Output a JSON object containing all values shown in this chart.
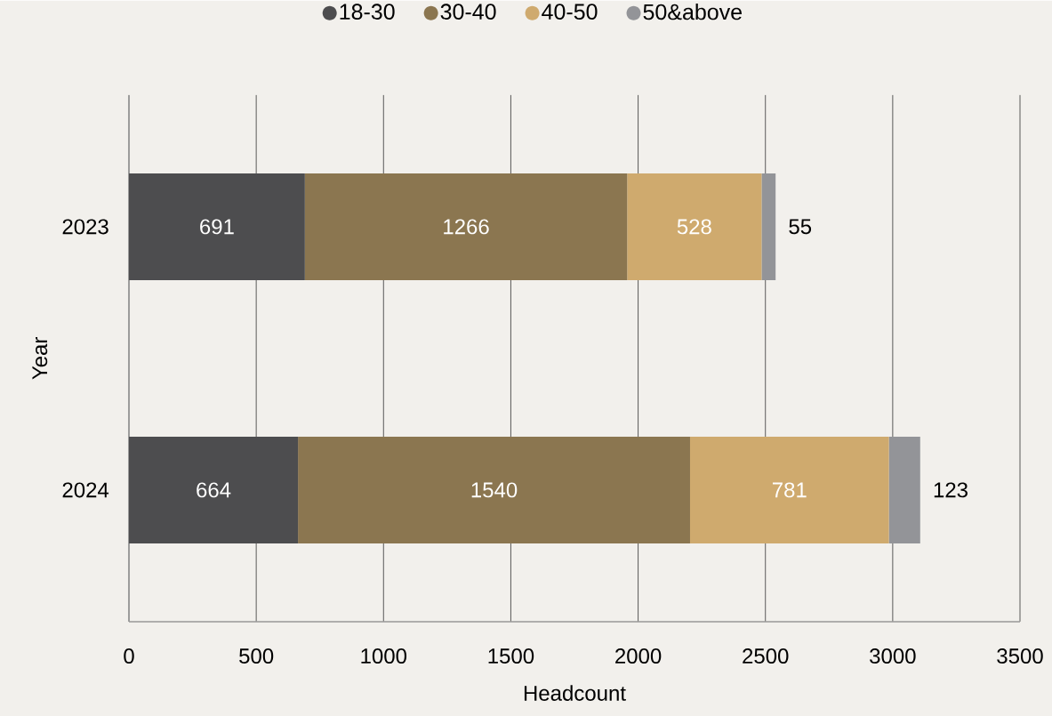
{
  "chart_data": {
    "type": "bar",
    "orientation": "horizontal",
    "stacked": true,
    "categories": [
      "2023",
      "2024"
    ],
    "series": [
      {
        "name": "18-30",
        "color": "#4d4d4f",
        "values": [
          691,
          664
        ]
      },
      {
        "name": "30-40",
        "color": "#8b7650",
        "values": [
          1266,
          1540
        ]
      },
      {
        "name": "40-50",
        "color": "#cfaa6e",
        "values": [
          528,
          781
        ]
      },
      {
        "name": "50&above",
        "color": "#939498",
        "values": [
          55,
          123
        ]
      }
    ],
    "xlim": [
      0,
      3500
    ],
    "xticks": [
      0,
      500,
      1000,
      1500,
      2000,
      2500,
      3000,
      3500
    ],
    "xlabel": "Headcount",
    "ylabel": "Year",
    "grid": "x",
    "legend": "top",
    "data_labels": true
  }
}
